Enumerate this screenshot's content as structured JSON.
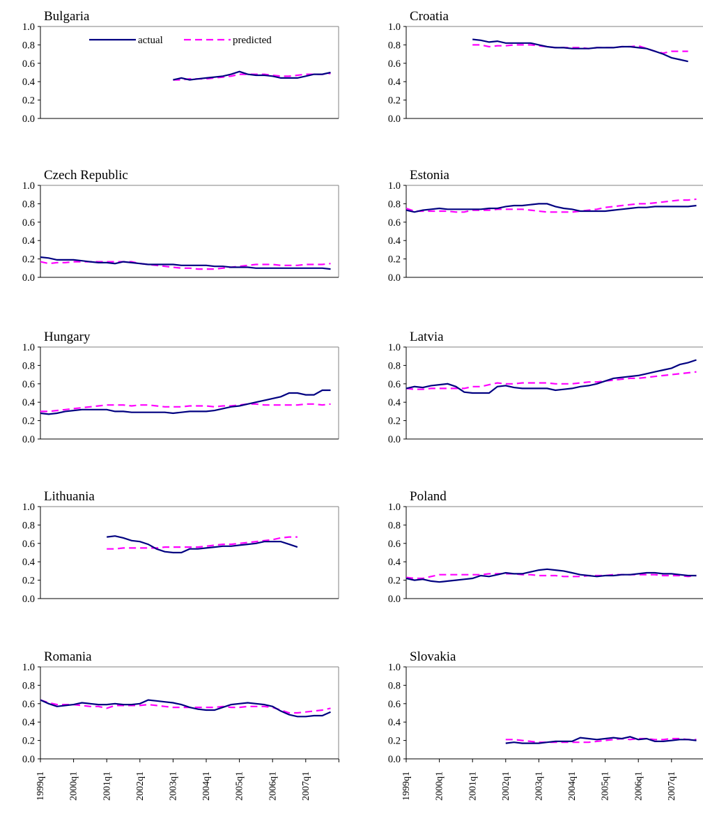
{
  "chart_data": {
    "type": "line",
    "legend": {
      "placement": "top-center (Bulgaria panel)",
      "entries": [
        {
          "name": "actual",
          "color": "#000080",
          "style": "solid"
        },
        {
          "name": "predicted",
          "color": "#FF00FF",
          "style": "dashed"
        }
      ]
    },
    "y_ticks": [
      "0.0",
      "0.2",
      "0.4",
      "0.6",
      "0.8",
      "1.0"
    ],
    "ylim": [
      0,
      1
    ],
    "x_ticks": [
      "1999q1",
      "2000q1",
      "2001q1",
      "2002q1",
      "2003q1",
      "2004q1",
      "2005q1",
      "2006q1",
      "2007q1"
    ],
    "x_period": "quarterly, 1999q1 to 2007q4",
    "panels": [
      {
        "title": "Bulgaria",
        "actual": {
          "start": "2003q1",
          "values": [
            0.42,
            0.44,
            0.42,
            0.43,
            0.44,
            0.45,
            0.46,
            0.48,
            0.51,
            0.48,
            0.47,
            0.47,
            0.46,
            0.44,
            0.44,
            0.44,
            0.46,
            0.48,
            0.48,
            0.5
          ]
        },
        "predicted": {
          "start": "2003q1",
          "values": [
            0.42,
            0.42,
            0.43,
            0.43,
            0.43,
            0.44,
            0.45,
            0.46,
            0.48,
            0.48,
            0.48,
            0.48,
            0.47,
            0.46,
            0.46,
            0.47,
            0.48,
            0.48,
            0.48,
            0.49
          ]
        }
      },
      {
        "title": "Croatia",
        "actual": {
          "start": "2001q1",
          "values": [
            0.86,
            0.85,
            0.83,
            0.84,
            0.82,
            0.82,
            0.82,
            0.82,
            0.8,
            0.78,
            0.77,
            0.77,
            0.76,
            0.76,
            0.76,
            0.77,
            0.77,
            0.77,
            0.78,
            0.78,
            0.77,
            0.76,
            0.73,
            0.7,
            0.66,
            0.64,
            0.62
          ]
        },
        "predicted": {
          "start": "2001q1",
          "values": [
            0.8,
            0.8,
            0.78,
            0.79,
            0.79,
            0.8,
            0.8,
            0.8,
            0.79,
            0.78,
            0.77,
            0.77,
            0.77,
            0.77,
            0.76,
            0.77,
            0.77,
            0.77,
            0.78,
            0.78,
            0.79,
            0.76,
            0.73,
            0.71,
            0.73,
            0.73,
            0.73
          ]
        }
      },
      {
        "title": "Czech Republic",
        "actual": {
          "start": "1999q1",
          "values": [
            0.22,
            0.21,
            0.19,
            0.19,
            0.19,
            0.18,
            0.17,
            0.16,
            0.16,
            0.15,
            0.17,
            0.16,
            0.15,
            0.14,
            0.14,
            0.14,
            0.14,
            0.13,
            0.13,
            0.13,
            0.13,
            0.12,
            0.12,
            0.11,
            0.11,
            0.11,
            0.1,
            0.1,
            0.1,
            0.1,
            0.1,
            0.1,
            0.1,
            0.1,
            0.1,
            0.09
          ]
        },
        "predicted": {
          "start": "1999q1",
          "values": [
            0.17,
            0.15,
            0.16,
            0.16,
            0.17,
            0.17,
            0.17,
            0.17,
            0.17,
            0.17,
            0.17,
            0.17,
            0.15,
            0.14,
            0.13,
            0.12,
            0.11,
            0.1,
            0.1,
            0.09,
            0.09,
            0.09,
            0.1,
            0.11,
            0.12,
            0.13,
            0.14,
            0.14,
            0.14,
            0.13,
            0.13,
            0.13,
            0.14,
            0.14,
            0.14,
            0.15
          ]
        }
      },
      {
        "title": "Estonia",
        "actual": {
          "start": "1999q1",
          "values": [
            0.73,
            0.71,
            0.73,
            0.74,
            0.75,
            0.74,
            0.74,
            0.74,
            0.74,
            0.74,
            0.75,
            0.75,
            0.77,
            0.78,
            0.78,
            0.79,
            0.8,
            0.8,
            0.77,
            0.75,
            0.74,
            0.72,
            0.72,
            0.72,
            0.72,
            0.73,
            0.74,
            0.75,
            0.76,
            0.76,
            0.77,
            0.77,
            0.77,
            0.77,
            0.77,
            0.78
          ]
        },
        "predicted": {
          "start": "1999q1",
          "values": [
            0.75,
            0.72,
            0.72,
            0.72,
            0.72,
            0.72,
            0.71,
            0.71,
            0.73,
            0.73,
            0.73,
            0.74,
            0.74,
            0.74,
            0.74,
            0.73,
            0.72,
            0.71,
            0.71,
            0.71,
            0.71,
            0.72,
            0.73,
            0.74,
            0.76,
            0.77,
            0.78,
            0.79,
            0.8,
            0.8,
            0.81,
            0.82,
            0.83,
            0.84,
            0.84,
            0.85
          ]
        }
      },
      {
        "title": "Hungary",
        "actual": {
          "start": "1999q1",
          "values": [
            0.28,
            0.27,
            0.28,
            0.3,
            0.31,
            0.32,
            0.32,
            0.32,
            0.32,
            0.3,
            0.3,
            0.29,
            0.29,
            0.29,
            0.29,
            0.29,
            0.28,
            0.29,
            0.3,
            0.3,
            0.3,
            0.31,
            0.33,
            0.35,
            0.36,
            0.38,
            0.4,
            0.42,
            0.44,
            0.46,
            0.5,
            0.5,
            0.48,
            0.48,
            0.53,
            0.53
          ]
        },
        "predicted": {
          "start": "1999q1",
          "values": [
            0.3,
            0.3,
            0.31,
            0.32,
            0.33,
            0.34,
            0.35,
            0.36,
            0.37,
            0.37,
            0.37,
            0.36,
            0.37,
            0.37,
            0.36,
            0.35,
            0.35,
            0.35,
            0.36,
            0.36,
            0.36,
            0.35,
            0.36,
            0.36,
            0.37,
            0.38,
            0.38,
            0.37,
            0.37,
            0.37,
            0.37,
            0.37,
            0.38,
            0.38,
            0.37,
            0.38
          ]
        }
      },
      {
        "title": "Latvia",
        "actual": {
          "start": "1999q1",
          "values": [
            0.55,
            0.57,
            0.56,
            0.58,
            0.59,
            0.6,
            0.57,
            0.51,
            0.5,
            0.5,
            0.5,
            0.57,
            0.58,
            0.56,
            0.55,
            0.55,
            0.55,
            0.55,
            0.53,
            0.54,
            0.55,
            0.57,
            0.58,
            0.6,
            0.63,
            0.66,
            0.67,
            0.68,
            0.69,
            0.71,
            0.73,
            0.75,
            0.77,
            0.81,
            0.83,
            0.86
          ]
        },
        "predicted": {
          "start": "1999q1",
          "values": [
            0.55,
            0.54,
            0.54,
            0.55,
            0.55,
            0.55,
            0.55,
            0.55,
            0.57,
            0.57,
            0.59,
            0.61,
            0.6,
            0.6,
            0.61,
            0.61,
            0.61,
            0.61,
            0.6,
            0.6,
            0.6,
            0.61,
            0.62,
            0.62,
            0.63,
            0.64,
            0.65,
            0.66,
            0.66,
            0.67,
            0.68,
            0.69,
            0.7,
            0.71,
            0.72,
            0.73
          ]
        }
      },
      {
        "title": "Lithuania",
        "actual": {
          "start": "2001q1",
          "values": [
            0.67,
            0.68,
            0.66,
            0.63,
            0.62,
            0.59,
            0.54,
            0.51,
            0.5,
            0.5,
            0.54,
            0.54,
            0.55,
            0.56,
            0.57,
            0.57,
            0.58,
            0.59,
            0.6,
            0.62,
            0.62,
            0.62,
            0.59,
            0.56
          ]
        },
        "predicted": {
          "start": "2001q1",
          "values": [
            0.54,
            0.54,
            0.55,
            0.55,
            0.55,
            0.55,
            0.55,
            0.56,
            0.56,
            0.56,
            0.56,
            0.56,
            0.57,
            0.58,
            0.59,
            0.59,
            0.6,
            0.61,
            0.62,
            0.63,
            0.64,
            0.66,
            0.67,
            0.67
          ]
        }
      },
      {
        "title": "Poland",
        "actual": {
          "start": "1999q1",
          "values": [
            0.22,
            0.2,
            0.21,
            0.19,
            0.18,
            0.19,
            0.2,
            0.21,
            0.22,
            0.25,
            0.24,
            0.26,
            0.28,
            0.27,
            0.27,
            0.29,
            0.31,
            0.32,
            0.31,
            0.3,
            0.28,
            0.26,
            0.25,
            0.24,
            0.25,
            0.25,
            0.26,
            0.26,
            0.27,
            0.28,
            0.28,
            0.27,
            0.27,
            0.26,
            0.25,
            0.25
          ]
        },
        "predicted": {
          "start": "1999q1",
          "values": [
            0.23,
            0.22,
            0.22,
            0.24,
            0.26,
            0.26,
            0.26,
            0.26,
            0.26,
            0.26,
            0.27,
            0.27,
            0.27,
            0.27,
            0.26,
            0.26,
            0.25,
            0.25,
            0.25,
            0.24,
            0.24,
            0.24,
            0.25,
            0.25,
            0.25,
            0.26,
            0.26,
            0.26,
            0.26,
            0.26,
            0.26,
            0.25,
            0.25,
            0.25,
            0.24,
            0.25
          ]
        }
      },
      {
        "title": "Romania",
        "actual": {
          "start": "1999q1",
          "values": [
            0.64,
            0.6,
            0.57,
            0.58,
            0.59,
            0.61,
            0.6,
            0.59,
            0.59,
            0.6,
            0.59,
            0.59,
            0.6,
            0.64,
            0.63,
            0.62,
            0.61,
            0.59,
            0.56,
            0.54,
            0.53,
            0.53,
            0.56,
            0.59,
            0.6,
            0.61,
            0.6,
            0.59,
            0.57,
            0.52,
            0.48,
            0.46,
            0.46,
            0.47,
            0.47,
            0.51
          ]
        },
        "predicted": {
          "start": "1999q1",
          "values": [
            0.64,
            0.61,
            0.59,
            0.59,
            0.59,
            0.58,
            0.57,
            0.57,
            0.55,
            0.58,
            0.58,
            0.58,
            0.58,
            0.59,
            0.58,
            0.57,
            0.56,
            0.56,
            0.56,
            0.56,
            0.56,
            0.56,
            0.57,
            0.56,
            0.56,
            0.57,
            0.57,
            0.57,
            0.56,
            0.53,
            0.5,
            0.5,
            0.51,
            0.52,
            0.53,
            0.55
          ]
        }
      },
      {
        "title": "Slovakia",
        "actual": {
          "start": "2002q1",
          "values": [
            0.17,
            0.18,
            0.17,
            0.17,
            0.17,
            0.18,
            0.19,
            0.19,
            0.19,
            0.23,
            0.22,
            0.21,
            0.22,
            0.23,
            0.22,
            0.24,
            0.21,
            0.22,
            0.19,
            0.19,
            0.2,
            0.21,
            0.21,
            0.2
          ]
        },
        "predicted": {
          "start": "2002q1",
          "values": [
            0.21,
            0.21,
            0.2,
            0.19,
            0.18,
            0.18,
            0.18,
            0.18,
            0.18,
            0.18,
            0.18,
            0.19,
            0.2,
            0.21,
            0.22,
            0.21,
            0.22,
            0.22,
            0.21,
            0.21,
            0.22,
            0.22,
            0.21,
            0.21
          ]
        }
      }
    ]
  }
}
